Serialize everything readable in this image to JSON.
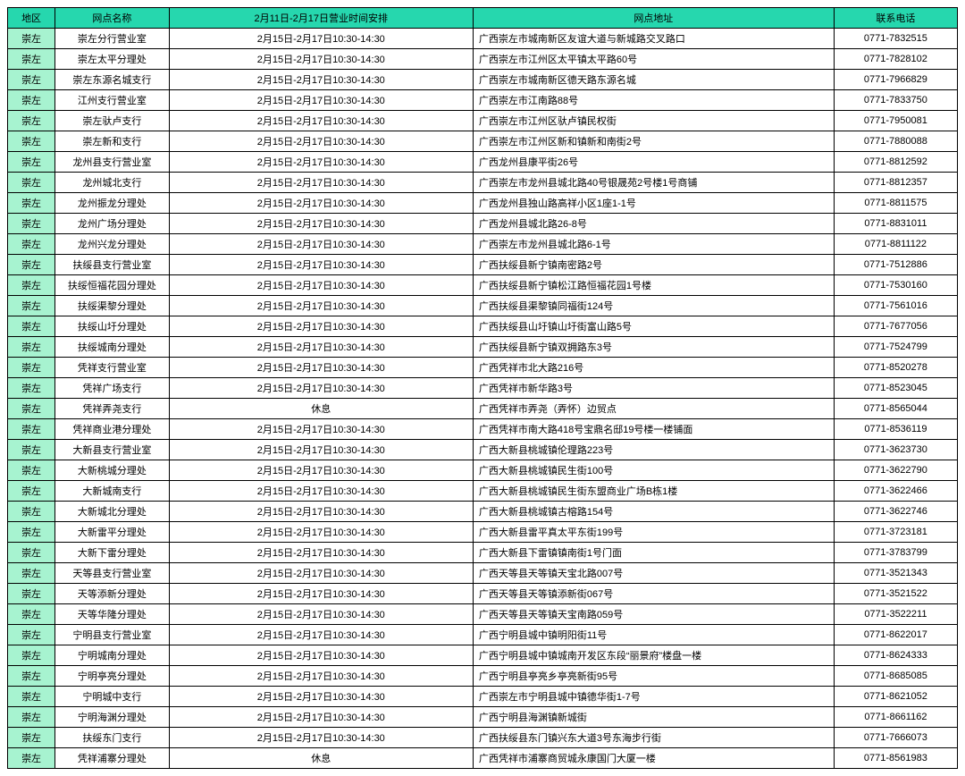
{
  "columns": [
    {
      "key": "region",
      "label": "地区"
    },
    {
      "key": "name",
      "label": "网点名称"
    },
    {
      "key": "hours",
      "label": "2月11日-2月17日营业时间安排"
    },
    {
      "key": "addr",
      "label": "网点地址"
    },
    {
      "key": "phone",
      "label": "联系电话"
    }
  ],
  "rows": [
    [
      "崇左",
      "崇左分行营业室",
      "2月15日-2月17日10:30-14:30",
      "广西崇左市城南新区友谊大道与新城路交叉路口",
      "0771-7832515"
    ],
    [
      "崇左",
      "崇左太平分理处",
      "2月15日-2月17日10:30-14:30",
      "广西崇左市江州区太平镇太平路60号",
      "0771-7828102"
    ],
    [
      "崇左",
      "崇左东源名城支行",
      "2月15日-2月17日10:30-14:30",
      "广西崇左市城南新区德天路东源名城",
      "0771-7966829"
    ],
    [
      "崇左",
      "江州支行营业室",
      "2月15日-2月17日10:30-14:30",
      "广西崇左市江南路88号",
      "0771-7833750"
    ],
    [
      "崇左",
      "崇左驮卢支行",
      "2月15日-2月17日10:30-14:30",
      "广西崇左市江州区驮卢镇民权街",
      "0771-7950081"
    ],
    [
      "崇左",
      "崇左新和支行",
      "2月15日-2月17日10:30-14:30",
      "广西崇左市江州区新和镇新和南街2号",
      "0771-7880088"
    ],
    [
      "崇左",
      "龙州县支行营业室",
      "2月15日-2月17日10:30-14:30",
      "广西龙州县康平街26号",
      "0771-8812592"
    ],
    [
      "崇左",
      "龙州城北支行",
      "2月15日-2月17日10:30-14:30",
      "广西崇左市龙州县城北路40号银晟苑2号楼1号商铺",
      "0771-8812357"
    ],
    [
      "崇左",
      "龙州振龙分理处",
      "2月15日-2月17日10:30-14:30",
      "广西龙州县独山路高祥小区1座1-1号",
      "0771-8811575"
    ],
    [
      "崇左",
      "龙州广场分理处",
      "2月15日-2月17日10:30-14:30",
      "广西龙州县城北路26-8号",
      "0771-8831011"
    ],
    [
      "崇左",
      "龙州兴龙分理处",
      "2月15日-2月17日10:30-14:30",
      "广西崇左市龙州县城北路6-1号",
      "0771-8811122"
    ],
    [
      "崇左",
      "扶绥县支行营业室",
      "2月15日-2月17日10:30-14:30",
      "广西扶绥县新宁镇南密路2号",
      "0771-7512886"
    ],
    [
      "崇左",
      "扶绥恒福花园分理处",
      "2月15日-2月17日10:30-14:30",
      "广西扶绥县新宁镇松江路恒福花园1号楼",
      "0771-7530160"
    ],
    [
      "崇左",
      "扶绥渠黎分理处",
      "2月15日-2月17日10:30-14:30",
      "广西扶绥县渠黎镇同福街124号",
      "0771-7561016"
    ],
    [
      "崇左",
      "扶绥山圩分理处",
      "2月15日-2月17日10:30-14:30",
      "广西扶绥县山圩镇山圩街富山路5号",
      "0771-7677056"
    ],
    [
      "崇左",
      "扶绥城南分理处",
      "2月15日-2月17日10:30-14:30",
      "广西扶绥县新宁镇双拥路东3号",
      "0771-7524799"
    ],
    [
      "崇左",
      "凭祥支行营业室",
      "2月15日-2月17日10:30-14:30",
      "广西凭祥市北大路216号",
      "0771-8520278"
    ],
    [
      "崇左",
      "凭祥广场支行",
      "2月15日-2月17日10:30-14:30",
      "广西凭祥市新华路3号",
      "0771-8523045"
    ],
    [
      "崇左",
      "凭祥弄尧支行",
      "休息",
      "广西凭祥市弄尧（弄怀）边贸点",
      "0771-8565044"
    ],
    [
      "崇左",
      "凭祥商业港分理处",
      "2月15日-2月17日10:30-14:30",
      "广西凭祥市南大路418号宝鼎名邸19号楼一楼铺面",
      "0771-8536119"
    ],
    [
      "崇左",
      "大新县支行营业室",
      "2月15日-2月17日10:30-14:30",
      "广西大新县桃城镇伦理路223号",
      "0771-3623730"
    ],
    [
      "崇左",
      "大新桃城分理处",
      "2月15日-2月17日10:30-14:30",
      "广西大新县桃城镇民生街100号",
      "0771-3622790"
    ],
    [
      "崇左",
      "大新城南支行",
      "2月15日-2月17日10:30-14:30",
      "广西大新县桃城镇民生街东盟商业广场B栋1楼",
      "0771-3622466"
    ],
    [
      "崇左",
      "大新城北分理处",
      "2月15日-2月17日10:30-14:30",
      "广西大新县桃城镇古榕路154号",
      "0771-3622746"
    ],
    [
      "崇左",
      "大新雷平分理处",
      "2月15日-2月17日10:30-14:30",
      "广西大新县雷平真太平东街199号",
      "0771-3723181"
    ],
    [
      "崇左",
      "大新下雷分理处",
      "2月15日-2月17日10:30-14:30",
      "广西大新县下雷镇镇南街1号门面",
      "0771-3783799"
    ],
    [
      "崇左",
      "天等县支行营业室",
      "2月15日-2月17日10:30-14:30",
      "广西天等县天等镇天宝北路007号",
      "0771-3521343"
    ],
    [
      "崇左",
      "天等添新分理处",
      "2月15日-2月17日10:30-14:30",
      "广西天等县天等镇添新街067号",
      "0771-3521522"
    ],
    [
      "崇左",
      "天等华隆分理处",
      "2月15日-2月17日10:30-14:30",
      "广西天等县天等镇天宝南路059号",
      "0771-3522211"
    ],
    [
      "崇左",
      "宁明县支行营业室",
      "2月15日-2月17日10:30-14:30",
      "广西宁明县城中镇明阳街11号",
      "0771-8622017"
    ],
    [
      "崇左",
      "宁明城南分理处",
      "2月15日-2月17日10:30-14:30",
      "广西宁明县城中镇城南开发区东段“丽景府”楼盘一楼",
      "0771-8624333"
    ],
    [
      "崇左",
      "宁明亭亮分理处",
      "2月15日-2月17日10:30-14:30",
      "广西宁明县亭亮乡亭亮新街95号",
      "0771-8685085"
    ],
    [
      "崇左",
      "宁明城中支行",
      "2月15日-2月17日10:30-14:30",
      "广西崇左市宁明县城中镇德华街1-7号",
      "0771-8621052"
    ],
    [
      "崇左",
      "宁明海渊分理处",
      "2月15日-2月17日10:30-14:30",
      "广西宁明县海渊镇新城街",
      "0771-8661162"
    ],
    [
      "崇左",
      "扶绥东门支行",
      "2月15日-2月17日10:30-14:30",
      "广西扶绥县东门镇兴东大道3号东海步行街",
      "0771-7666073"
    ],
    [
      "崇左",
      "凭祥浦寨分理处",
      "休息",
      "广西凭祥市浦寨商贸城永康国门大厦一楼",
      "0771-8561983"
    ]
  ]
}
